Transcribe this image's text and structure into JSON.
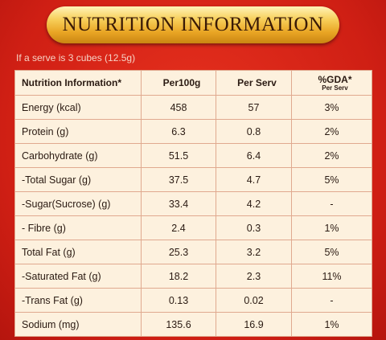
{
  "header": {
    "title": "NUTRITION INFORMATION",
    "subtitle": "If a serve is 3 cubes (12.5g)"
  },
  "table": {
    "columns": [
      {
        "label": "Nutrition Information*"
      },
      {
        "label": "Per100g"
      },
      {
        "label": "Per Serv"
      },
      {
        "label": "%GDA*",
        "sublabel": "Per Serv"
      }
    ],
    "rows": [
      [
        "Energy (kcal)",
        "458",
        "57",
        "3%"
      ],
      [
        "Protein (g)",
        "6.3",
        "0.8",
        "2%"
      ],
      [
        "Carbohydrate (g)",
        "51.5",
        "6.4",
        "2%"
      ],
      [
        "-Total Sugar (g)",
        "37.5",
        "4.7",
        "5%"
      ],
      [
        "-Sugar(Sucrose) (g)",
        "33.4",
        "4.2",
        "-"
      ],
      [
        "- Fibre (g)",
        "2.4",
        "0.3",
        "1%"
      ],
      [
        "Total Fat (g)",
        "25.3",
        "3.2",
        "5%"
      ],
      [
        "-Saturated Fat (g)",
        "18.2",
        "2.3",
        "11%"
      ],
      [
        "-Trans Fat (g)",
        "0.13",
        "0.02",
        "-"
      ],
      [
        "Sodium (mg)",
        "135.6",
        "16.9",
        "1%"
      ]
    ]
  }
}
